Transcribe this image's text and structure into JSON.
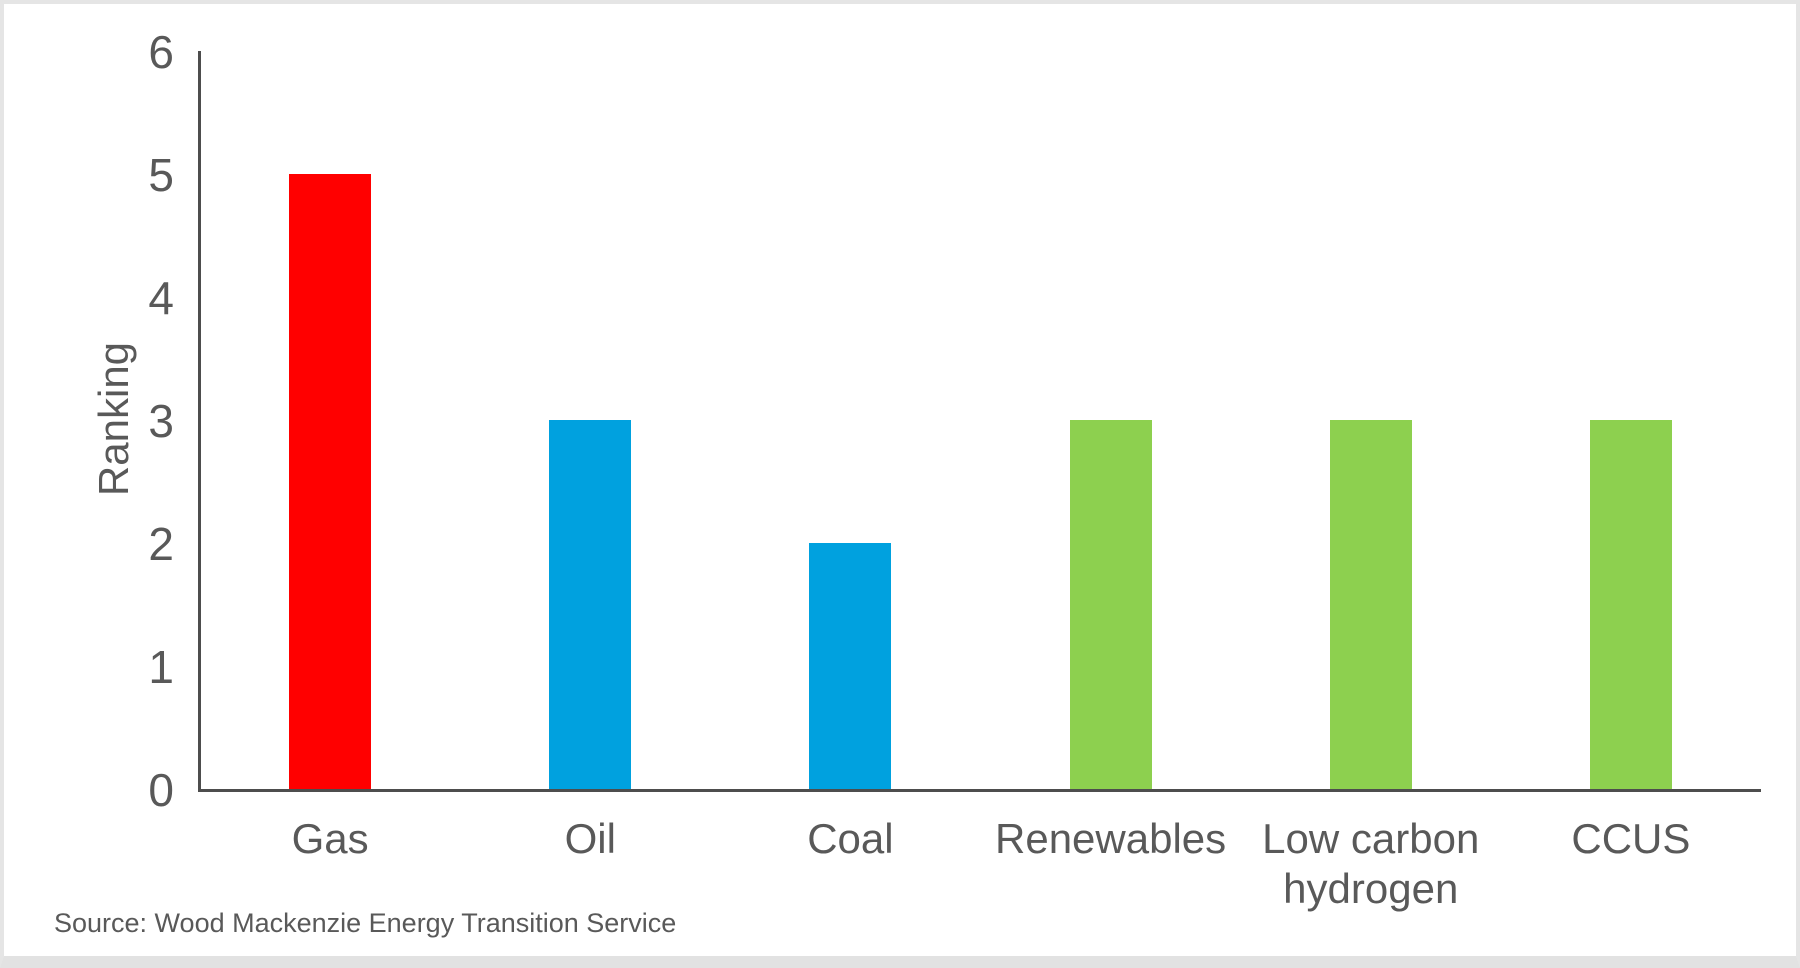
{
  "chart_data": {
    "type": "bar",
    "categories": [
      "Gas",
      "Oil",
      "Coal",
      "Renewables",
      "Low carbon hydrogen",
      "CCUS"
    ],
    "values": [
      5,
      3,
      2,
      3,
      3,
      3
    ],
    "bar_colors": [
      "#ff0000",
      "#00a1df",
      "#00a1df",
      "#8dd04f",
      "#8dd04f",
      "#8dd04f"
    ],
    "title": "",
    "xlabel": "",
    "ylabel": "Ranking",
    "yticks": [
      0,
      1,
      2,
      3,
      4,
      5,
      6
    ],
    "ylim": [
      0,
      6
    ],
    "grid": false,
    "legend_position": "none"
  },
  "footer": {
    "source": "Source: Wood Mackenzie Energy Transition Service"
  },
  "colors": {
    "bar_red": "#ff0000",
    "bar_blue": "#00a1df",
    "bar_green": "#8dd04f",
    "text": "#595959",
    "axis": "#4d4d4d",
    "frame": "#e5e5e5"
  }
}
